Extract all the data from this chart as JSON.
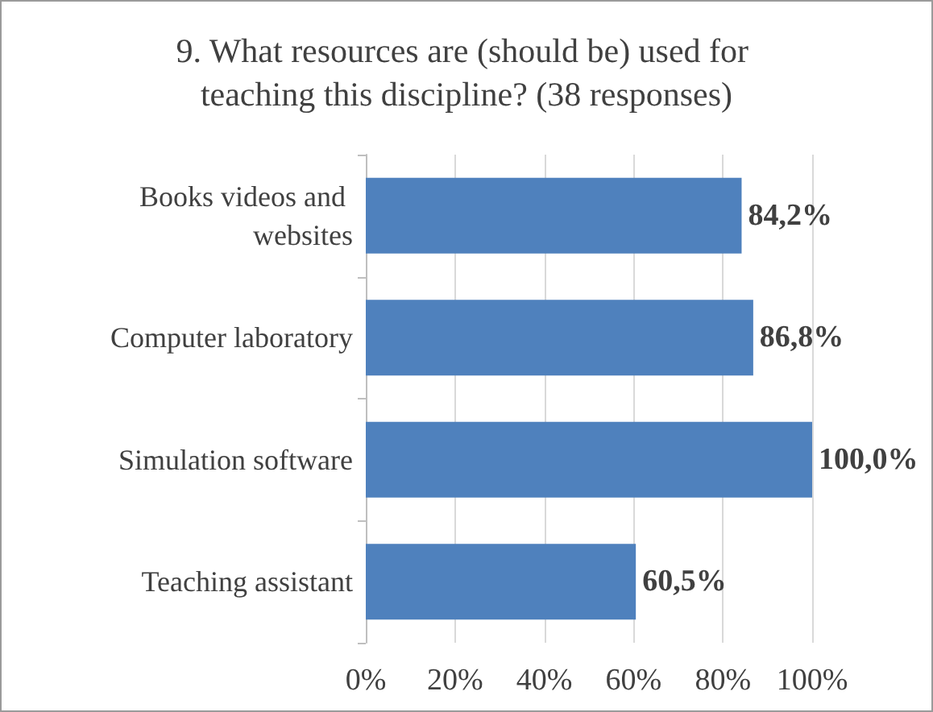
{
  "chart_data": {
    "type": "bar",
    "orientation": "horizontal",
    "title": "9. What resources are (should be) used for teaching this discipline? (38 responses)",
    "categories": [
      "Books videos and websites",
      "Computer laboratory",
      "Simulation software",
      "Teaching assistant"
    ],
    "values": [
      84.2,
      86.8,
      100.0,
      60.5
    ],
    "value_labels": [
      "84,2%",
      "86,8%",
      "100,0%",
      "60,5%"
    ],
    "color": "#4f81bd",
    "xlim": [
      0,
      100
    ],
    "xticks": [
      {
        "value": 0,
        "label": "0%"
      },
      {
        "value": 20,
        "label": "20%"
      },
      {
        "value": 40,
        "label": "40%"
      },
      {
        "value": 60,
        "label": "60%"
      },
      {
        "value": 80,
        "label": "80%"
      },
      {
        "value": 100,
        "label": "100%"
      }
    ],
    "grid": "x"
  }
}
